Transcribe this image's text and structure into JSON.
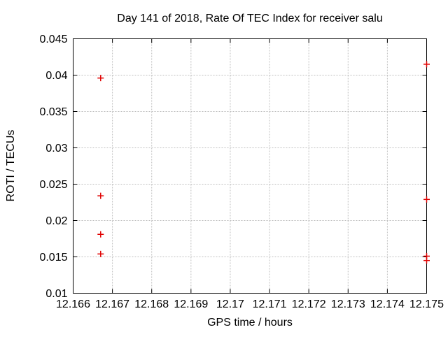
{
  "chart_data": {
    "type": "scatter",
    "title": "Day 141 of 2018, Rate Of TEC Index for receiver salu",
    "xlabel": "GPS time / hours",
    "ylabel": "ROTI / TECUs",
    "xlim": [
      12.166,
      12.175
    ],
    "ylim": [
      0.01,
      0.045
    ],
    "xtick_labels": [
      "12.166",
      "12.167",
      "12.168",
      "12.169",
      "12.17",
      "12.171",
      "12.172",
      "12.173",
      "12.174",
      "12.175"
    ],
    "ytick_labels": [
      "0.01",
      "0.015",
      "0.02",
      "0.025",
      "0.03",
      "0.035",
      "0.04",
      "0.045"
    ],
    "grid": true,
    "legend_position": "none",
    "marker": "plus",
    "marker_color": "#e00000",
    "grid_color": "#bebebe",
    "series": [
      {
        "name": "ROTI",
        "points": [
          [
            12.1667,
            0.0396
          ],
          [
            12.1667,
            0.0234
          ],
          [
            12.1667,
            0.0181
          ],
          [
            12.1667,
            0.0154
          ],
          [
            12.175,
            0.0415
          ],
          [
            12.175,
            0.0229
          ],
          [
            12.175,
            0.0151
          ],
          [
            12.175,
            0.0145
          ]
        ]
      }
    ]
  }
}
